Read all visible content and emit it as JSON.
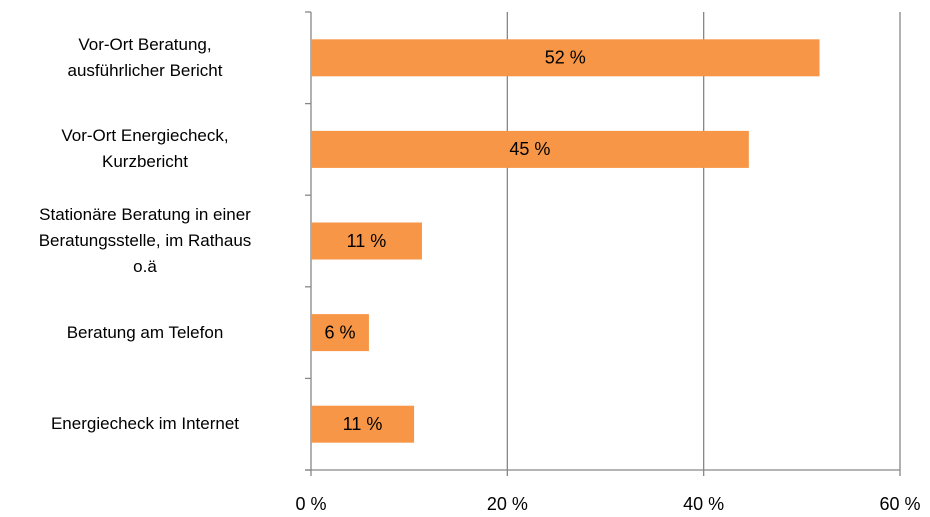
{
  "chart_data": {
    "type": "bar",
    "orientation": "horizontal",
    "categories": [
      "Vor-Ort Beratung,\nausführlicher Bericht",
      "Vor-Ort Energiecheck,\nKurzbericht",
      "Stationäre Beratung in einer\nBeratungsstelle, im Rathaus\no.ä",
      "Beratung am Telefon",
      "Energiecheck im Internet"
    ],
    "values": [
      51.8,
      44.6,
      11.3,
      5.9,
      10.5
    ],
    "value_labels": [
      "52 %",
      "45 %",
      "11 %",
      "6 %",
      "11 %"
    ],
    "color": "#f79646",
    "xlim": [
      0,
      60
    ],
    "xticks": [
      {
        "value": 0,
        "label": "0 %"
      },
      {
        "value": 20,
        "label": "20 %"
      },
      {
        "value": 40,
        "label": "40 %"
      },
      {
        "value": 60,
        "label": "60 %"
      }
    ],
    "grid": true
  }
}
